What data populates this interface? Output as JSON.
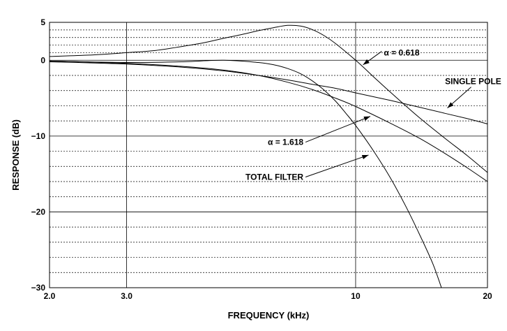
{
  "chart_data": {
    "type": "line",
    "xlabel": "FREQUENCY (kHz)",
    "ylabel": "RESPONSE (dB)",
    "x_scale": "log",
    "xlim": [
      2.0,
      20
    ],
    "ylim": [
      -30,
      5
    ],
    "x_ticks": [
      {
        "value": 2.0,
        "label": "2.0"
      },
      {
        "value": 3.0,
        "label": "3.0"
      },
      {
        "value": 10,
        "label": "10"
      },
      {
        "value": 20,
        "label": "20"
      }
    ],
    "y_ticks": [
      {
        "value": 5,
        "label": "5"
      },
      {
        "value": 0,
        "label": "0"
      },
      {
        "value": -10,
        "label": "−10"
      },
      {
        "value": -20,
        "label": "−20"
      },
      {
        "value": -30,
        "label": "−30"
      }
    ],
    "major_grid_x": [
      2.0,
      3.0,
      10,
      20
    ],
    "major_grid_y": [
      5,
      0,
      -10,
      -20,
      -30
    ],
    "minor_grid_y": [
      4,
      3,
      2,
      1,
      -2,
      -4,
      -6,
      -8,
      -12,
      -14,
      -16,
      -18,
      -22,
      -24,
      -26,
      -28
    ],
    "series": [
      {
        "name": "α = 0.618",
        "x": [
          2.0,
          2.5,
          3.0,
          3.5,
          4.0,
          4.5,
          5.0,
          5.5,
          6.0,
          6.5,
          7.0,
          7.5,
          8.0,
          8.5,
          9.0,
          10,
          11,
          12,
          14,
          16,
          18,
          20
        ],
        "y": [
          0.5,
          0.7,
          1.0,
          1.3,
          1.8,
          2.3,
          2.9,
          3.4,
          3.9,
          4.3,
          4.6,
          4.5,
          4.0,
          3.2,
          2.2,
          0.0,
          -2.2,
          -4.2,
          -7.6,
          -10.3,
          -12.6,
          -14.8
        ]
      },
      {
        "name": "SINGLE POLE",
        "x": [
          2.0,
          3.0,
          4.0,
          5.0,
          6.0,
          7.0,
          8.0,
          9.0,
          10,
          12,
          14,
          16,
          18,
          20
        ],
        "y": [
          -0.2,
          -0.5,
          -0.9,
          -1.4,
          -2.0,
          -2.6,
          -3.2,
          -3.7,
          -4.3,
          -5.3,
          -6.2,
          -7.0,
          -7.7,
          -8.4
        ]
      },
      {
        "name": "α = 1.618",
        "x": [
          2.0,
          3.0,
          4.0,
          5.0,
          6.0,
          7.0,
          8.0,
          9.0,
          10,
          12,
          14,
          16,
          18,
          20
        ],
        "y": [
          -0.1,
          -0.4,
          -0.8,
          -1.3,
          -2.0,
          -2.9,
          -3.9,
          -5.0,
          -6.1,
          -8.3,
          -10.3,
          -12.3,
          -14.2,
          -16.0
        ]
      },
      {
        "name": "TOTAL FILTER",
        "x": [
          2.0,
          3.0,
          4.0,
          5.0,
          6.0,
          6.5,
          7.0,
          7.5,
          8.0,
          8.5,
          9.0,
          9.5,
          10,
          11,
          12,
          13,
          14,
          15,
          15.7
        ],
        "y": [
          -0.1,
          -0.3,
          -0.2,
          0.0,
          -0.3,
          -0.6,
          -1.1,
          -1.8,
          -2.8,
          -4.0,
          -5.4,
          -7.0,
          -8.6,
          -12.0,
          -15.5,
          -19.2,
          -23.0,
          -26.8,
          -30
        ]
      }
    ],
    "annotations": [
      {
        "text": "α = 0.618",
        "series": "α = 0.618",
        "arrow_to": [
          10.4,
          -0.6
        ],
        "text_at": [
          11.6,
          1.0
        ]
      },
      {
        "text": "SINGLE POLE",
        "series": "SINGLE POLE",
        "arrow_to": [
          16.2,
          -6.3
        ],
        "text_at": [
          16.0,
          -2.8
        ]
      },
      {
        "text": "α = 1.618",
        "series": "α = 1.618",
        "arrow_to": [
          10.8,
          -7.4
        ],
        "text_at": [
          7.6,
          -10.8
        ]
      },
      {
        "text": "TOTAL FILTER",
        "series": "TOTAL FILTER",
        "arrow_to": [
          10.7,
          -12.5
        ],
        "text_at": [
          7.6,
          -15.4
        ]
      }
    ]
  }
}
